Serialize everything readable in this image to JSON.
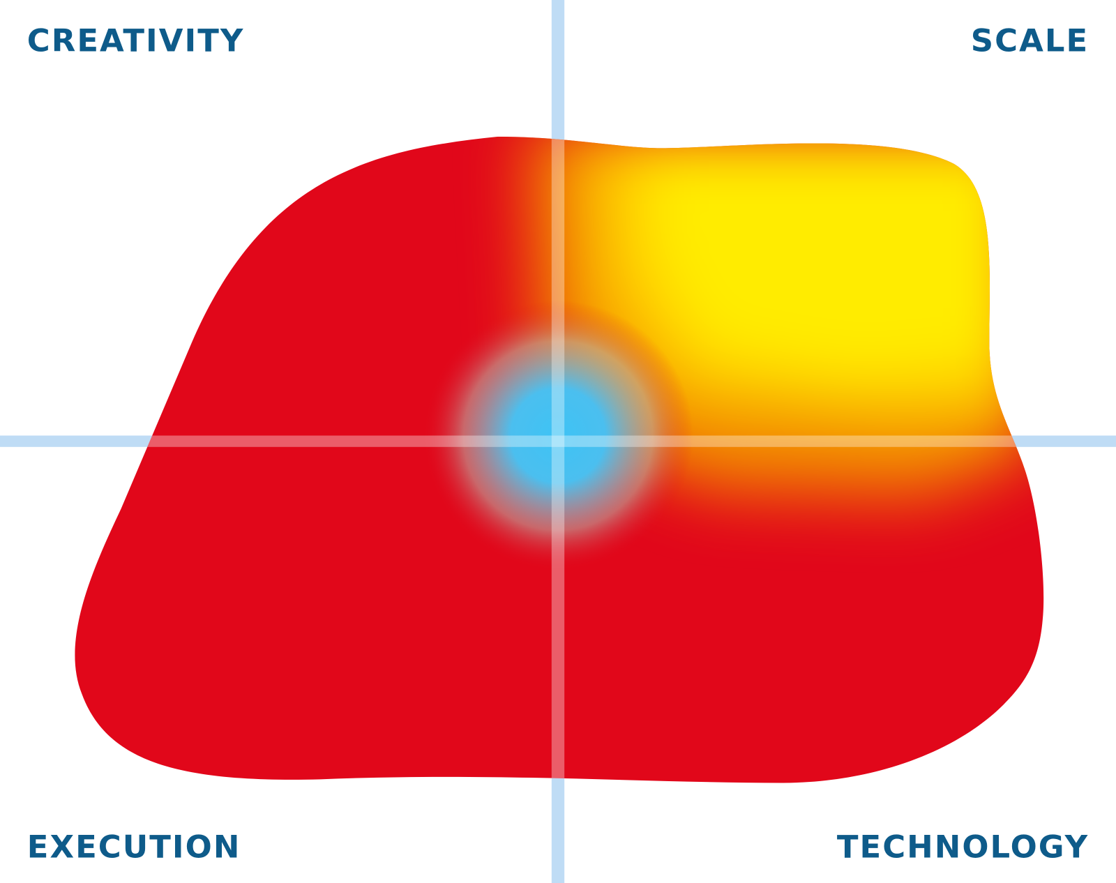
{
  "quadrants": {
    "top_left": "CREATIVITY",
    "top_right": "SCALE",
    "bottom_left": "EXECUTION",
    "bottom_right": "TECHNOLOGY"
  }
}
